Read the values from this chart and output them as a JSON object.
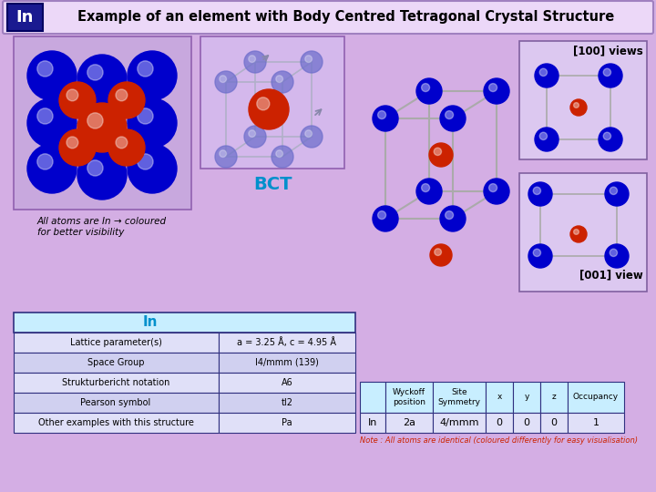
{
  "title": "Example of an element with Body Centred Tetragonal Crystal Structure",
  "element_symbol": "In",
  "background_color": "#d4aee4",
  "header_box_color": "#ecd8f8",
  "element_box_color": "#1a1a90",
  "element_box_text_color": "#ffffff",
  "table1_header": "In",
  "table1_header_color": "#c8eeff",
  "table1_rows": [
    [
      "Lattice parameter(s)",
      "a = 3.25 Å, c = 4.95 Å"
    ],
    [
      "Space Group",
      "I4/mmm (139)"
    ],
    [
      "Strukturbericht notation",
      "A6"
    ],
    [
      "Pearson symbol",
      "tI2"
    ],
    [
      "Other examples with this structure",
      "Pa"
    ]
  ],
  "table2_headers": [
    "",
    "Wyckoff\nposition",
    "Site\nSymmetry",
    "x",
    "y",
    "z",
    "Occupancy"
  ],
  "table2_rows": [
    [
      "In",
      "2a",
      "4/mmm",
      "0",
      "0",
      "0",
      "1"
    ]
  ],
  "note_text": "Note : All atoms are identical (coloured differently for easy visualisation)",
  "note_color": "#cc2200",
  "bct_label": "BCT",
  "bct_label_color": "#0090cc",
  "views_100_label": "[100] views",
  "views_001_label": "[001] view",
  "italic_note": "All atoms are In → coloured\nfor better visibility",
  "atom_blue": "#0000cc",
  "atom_blue_light": "#4444dd",
  "atom_red": "#cc2200",
  "atom_blue_semi": "#7070cc",
  "line_color": "#999999",
  "row_color_a": "#e0e0f8",
  "row_color_b": "#d0d0f0"
}
